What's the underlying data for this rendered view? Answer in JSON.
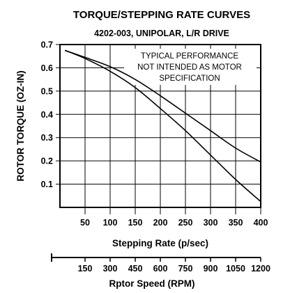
{
  "chart_data": {
    "type": "line",
    "title": "TORQUE/STEPPING RATE CURVES",
    "subtitle": "4202-003, UNIPOLAR, L/R DRIVE",
    "annotation": [
      "TYPICAL PERFORMANCE",
      "NOT INTENDED AS MOTOR",
      "SPECIFICATION"
    ],
    "ylabel": "ROTOR TORQUE (OZ-IN)",
    "xlabel": "Stepping Rate (p/sec)",
    "x2label": "Rptor Speed (RPM)",
    "xlim": [
      0,
      400
    ],
    "ylim": [
      0,
      0.7
    ],
    "xticks": [
      50,
      100,
      150,
      200,
      250,
      300,
      350,
      400
    ],
    "yticks": [
      0.1,
      0.2,
      0.3,
      0.4,
      0.5,
      0.6,
      0.7
    ],
    "x2ticks": [
      150,
      300,
      450,
      600,
      750,
      900,
      1050,
      1200
    ],
    "grid": true,
    "series": [
      {
        "x": [
          10,
          50,
          100,
          150,
          200,
          250,
          300,
          350,
          400
        ],
        "y": [
          0.675,
          0.645,
          0.605,
          0.55,
          0.48,
          0.405,
          0.33,
          0.255,
          0.195
        ]
      },
      {
        "x": [
          10,
          50,
          100,
          150,
          200,
          250,
          300,
          350,
          400
        ],
        "y": [
          0.675,
          0.64,
          0.585,
          0.515,
          0.425,
          0.33,
          0.225,
          0.12,
          0.025
        ]
      }
    ]
  }
}
